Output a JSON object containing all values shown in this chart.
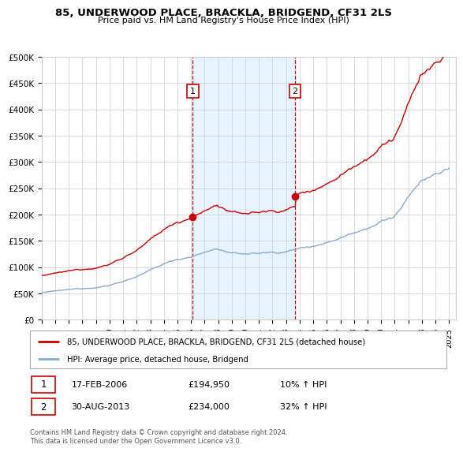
{
  "title": "85, UNDERWOOD PLACE, BRACKLA, BRIDGEND, CF31 2LS",
  "subtitle": "Price paid vs. HM Land Registry's House Price Index (HPI)",
  "legend_line1": "85, UNDERWOOD PLACE, BRACKLA, BRIDGEND, CF31 2LS (detached house)",
  "legend_line2": "HPI: Average price, detached house, Bridgend",
  "footnote": "Contains HM Land Registry data © Crown copyright and database right 2024.\nThis data is licensed under the Open Government Licence v3.0.",
  "sale1_date": "17-FEB-2006",
  "sale1_price": "£194,950",
  "sale1_hpi": "10% ↑ HPI",
  "sale2_date": "30-AUG-2013",
  "sale2_price": "£234,000",
  "sale2_hpi": "32% ↑ HPI",
  "sale1_x": 2006.13,
  "sale2_x": 2013.66,
  "sale1_y": 194950,
  "sale2_y": 234000,
  "line_color_red": "#cc0000",
  "line_color_blue": "#88aacc",
  "dot_color": "#cc0000",
  "vline_color": "#cc0000",
  "shade_color": "#ddeeff",
  "ylim_min": 0,
  "ylim_max": 500000,
  "xlim_min": 1995,
  "xlim_max": 2025.5,
  "yticks": [
    0,
    50000,
    100000,
    150000,
    200000,
    250000,
    300000,
    350000,
    400000,
    450000,
    500000
  ],
  "ytick_labels": [
    "£0",
    "£50K",
    "£100K",
    "£150K",
    "£200K",
    "£250K",
    "£300K",
    "£350K",
    "£400K",
    "£450K",
    "£500K"
  ],
  "xticks": [
    1995,
    1996,
    1997,
    1998,
    1999,
    2000,
    2001,
    2002,
    2003,
    2004,
    2005,
    2006,
    2007,
    2008,
    2009,
    2010,
    2011,
    2012,
    2013,
    2014,
    2015,
    2016,
    2017,
    2018,
    2019,
    2020,
    2021,
    2022,
    2023,
    2024,
    2025
  ]
}
